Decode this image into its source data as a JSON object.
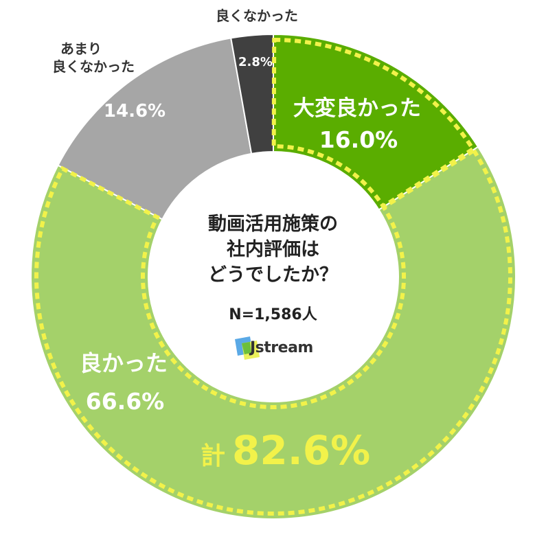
{
  "chart_data": {
    "type": "pie",
    "style": "donut",
    "slices": [
      {
        "label": "大変良かった",
        "value": 16.0,
        "value_label": "16.0%",
        "color": "#5aad00"
      },
      {
        "label": "良かった",
        "value": 66.6,
        "value_label": "66.6%",
        "color": "#a4d16a"
      },
      {
        "label": "あまり 良くなかった",
        "label_lines": [
          "あまり",
          "良くなかった"
        ],
        "value": 14.6,
        "value_label": "14.6%",
        "color": "#a6a6a6"
      },
      {
        "label": "良くなかった",
        "value": 2.8,
        "value_label": "2.8%",
        "color": "#404040"
      }
    ],
    "highlight": {
      "text_prefix": "計",
      "text_value": "82.6%",
      "color": "#f2f24a",
      "covers": [
        "大変良かった",
        "良かった"
      ]
    },
    "center": {
      "title_lines": [
        "動画活用施策の",
        "社内評価は",
        "どうでしたか？"
      ],
      "sample": "N=1,586人"
    }
  },
  "logo": {
    "text": "Jstream"
  }
}
